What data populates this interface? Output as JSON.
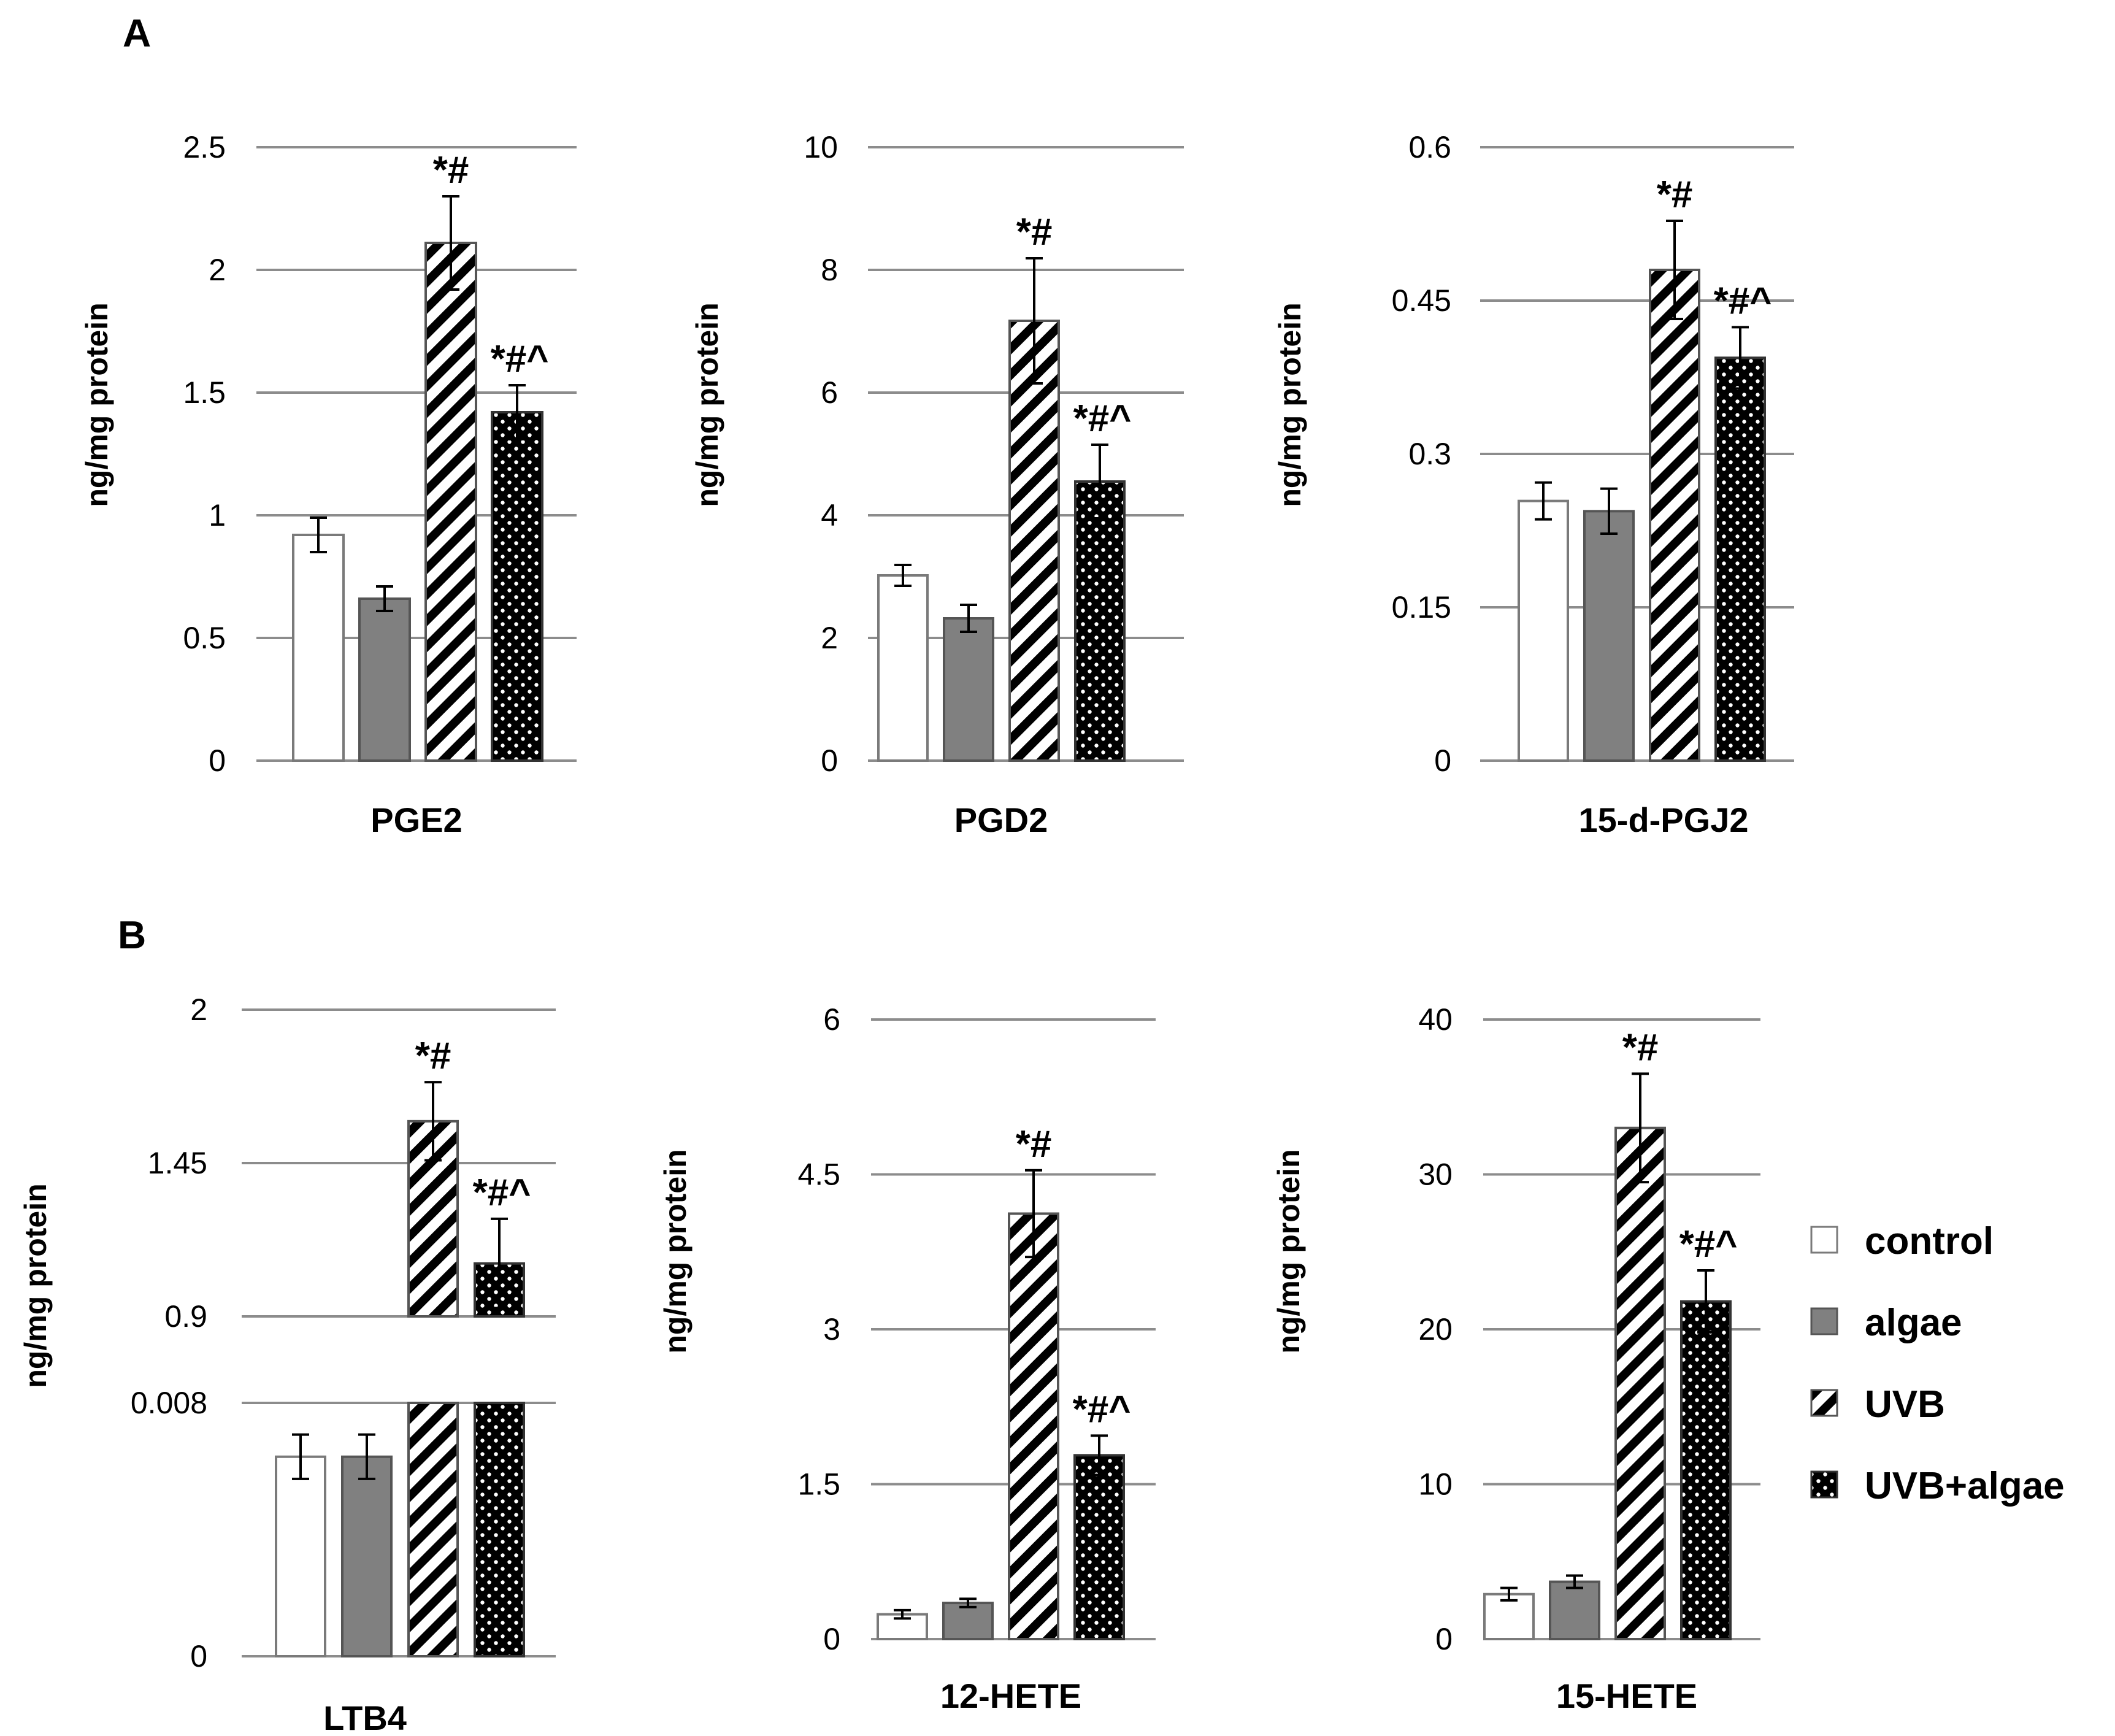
{
  "panels": [
    {
      "label": "A"
    },
    {
      "label": "B"
    }
  ],
  "series_style": {
    "control": {
      "fill": "#ffffff",
      "pattern": "none"
    },
    "algae": {
      "fill": "#808080",
      "pattern": "none"
    },
    "UVB": {
      "fill": "#ffffff",
      "pattern": "diagonal-stripes"
    },
    "UVB+algae": {
      "fill": "#000000",
      "pattern": "white-dots"
    }
  },
  "legend": {
    "entries": [
      "control",
      "algae",
      "UVB",
      "UVB+algae"
    ]
  },
  "chart_data": [
    {
      "type": "bar",
      "panel": "A",
      "title": "",
      "xlabel": "PGE2",
      "ylabel": "ng/mg protein",
      "ylim": [
        0,
        2.5
      ],
      "yticks": [
        "0",
        "0.5",
        "1",
        "1.5",
        "2",
        "2.5"
      ],
      "categories": [
        "control",
        "algae",
        "UVB",
        "UVB+algae"
      ],
      "values": [
        0.92,
        0.66,
        2.11,
        1.42
      ],
      "errors": [
        0.07,
        0.05,
        0.19,
        0.11
      ],
      "annotations": [
        "",
        "",
        "*#",
        "*#^"
      ],
      "grid": true
    },
    {
      "type": "bar",
      "panel": "A",
      "title": "",
      "xlabel": "PGD2",
      "ylabel": "ng/mg protein",
      "ylim": [
        0,
        10
      ],
      "yticks": [
        "0",
        "2",
        "4",
        "6",
        "8",
        "10"
      ],
      "categories": [
        "control",
        "algae",
        "UVB",
        "UVB+algae"
      ],
      "values": [
        3.02,
        2.32,
        7.17,
        4.55
      ],
      "errors": [
        0.17,
        0.22,
        1.02,
        0.6
      ],
      "annotations": [
        "",
        "",
        "*#",
        "*#^"
      ],
      "grid": true
    },
    {
      "type": "bar",
      "panel": "A",
      "title": "",
      "xlabel": "15-d-PGJ2",
      "ylabel": "ng/mg protein",
      "ylim": [
        0,
        0.6
      ],
      "yticks": [
        "0",
        "0.15",
        "0.3",
        "0.45",
        "0.6"
      ],
      "categories": [
        "control",
        "algae",
        "UVB",
        "UVB+algae"
      ],
      "values": [
        0.254,
        0.244,
        0.48,
        0.394
      ],
      "errors": [
        0.018,
        0.022,
        0.048,
        0.03
      ],
      "annotations": [
        "",
        "",
        "*#",
        "*#^"
      ],
      "grid": true
    },
    {
      "type": "bar",
      "panel": "B",
      "title": "",
      "xlabel": "LTB4",
      "ylabel": "ng/mg protein",
      "broken_axis": true,
      "ylim_lower": [
        0,
        0.008
      ],
      "ylim_upper": [
        0.9,
        2
      ],
      "yticks": [
        "0",
        "0.008",
        "0.9",
        "1.45",
        "2"
      ],
      "categories": [
        "control",
        "algae",
        "UVB",
        "UVB+algae"
      ],
      "values": [
        0.0063,
        0.0063,
        1.6,
        1.09
      ],
      "errors": [
        0.0007,
        0.0007,
        0.14,
        0.16
      ],
      "annotations": [
        "",
        "",
        "*#",
        "*#^"
      ],
      "grid": true
    },
    {
      "type": "bar",
      "panel": "B",
      "title": "",
      "xlabel": "12-HETE",
      "ylabel": "ng/mg protein",
      "ylim": [
        0,
        6
      ],
      "yticks": [
        "0",
        "1.5",
        "3",
        "4.5",
        "6"
      ],
      "categories": [
        "control",
        "algae",
        "UVB",
        "UVB+algae"
      ],
      "values": [
        0.24,
        0.35,
        4.12,
        1.78
      ],
      "errors": [
        0.04,
        0.04,
        0.42,
        0.19
      ],
      "annotations": [
        "",
        "",
        "*#",
        "*#^"
      ],
      "grid": true
    },
    {
      "type": "bar",
      "panel": "B",
      "title": "",
      "xlabel": "15-HETE",
      "ylabel": "ng/mg protein",
      "ylim": [
        0,
        40
      ],
      "yticks": [
        "0",
        "10",
        "20",
        "30",
        "40"
      ],
      "categories": [
        "control",
        "algae",
        "UVB",
        "UVB+algae"
      ],
      "values": [
        2.9,
        3.7,
        33.0,
        21.8
      ],
      "errors": [
        0.4,
        0.4,
        3.5,
        2.0
      ],
      "annotations": [
        "",
        "",
        "*#",
        "*#^"
      ],
      "grid": true
    }
  ]
}
